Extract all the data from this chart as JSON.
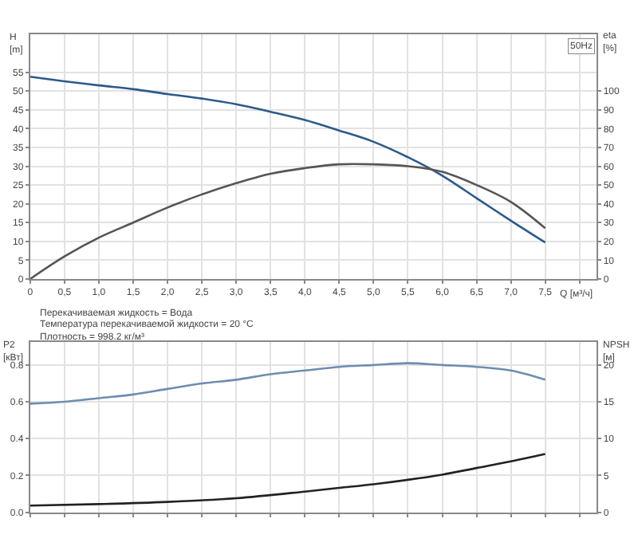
{
  "chart_data": [
    {
      "type": "line",
      "xlabel": "Q [м³/ч]",
      "ylabel": "H\n[m]",
      "y2label": "eta\n[%]",
      "xlim": [
        0,
        8.25
      ],
      "xticks": [
        0,
        {
          "value": 0.5,
          "label": "0,5"
        },
        {
          "value": 1,
          "label": "1,0"
        },
        {
          "value": 1.5,
          "label": "1,5"
        },
        {
          "value": 2,
          "label": "2,0"
        },
        {
          "value": 2.5,
          "label": "2,5"
        },
        {
          "value": 3,
          "label": "3,0"
        },
        {
          "value": 3.5,
          "label": "3,5"
        },
        {
          "value": 4,
          "label": "4,0"
        },
        {
          "value": 4.5,
          "label": "4,5"
        },
        {
          "value": 5,
          "label": "5,0"
        },
        {
          "value": 5.5,
          "label": "5,5"
        },
        {
          "value": 6,
          "label": "6,0"
        },
        {
          "value": 6.5,
          "label": "6,5"
        },
        {
          "value": 7,
          "label": "7,0"
        },
        {
          "value": 7.5,
          "label": "7,5"
        },
        {
          "value": 8,
          "label": null
        }
      ],
      "ylim": [
        0,
        65
      ],
      "yticks": [
        0,
        5,
        10,
        15,
        20,
        25,
        30,
        35,
        40,
        45,
        50,
        55
      ],
      "y2lim": [
        0,
        130
      ],
      "y2ticks": [
        0,
        10,
        20,
        30,
        40,
        50,
        60,
        70,
        80,
        90,
        100
      ],
      "grid": true,
      "series": [
        {
          "color": "#2b5a8c",
          "x": [
            0,
            0.5,
            1,
            1.5,
            2,
            2.5,
            3,
            3.5,
            4,
            4.5,
            5,
            5.5,
            6,
            6.5,
            7,
            7.5
          ],
          "values": [
            53.8,
            52.6,
            51.5,
            50.5,
            49.2,
            48,
            46.5,
            44.5,
            42.3,
            39.5,
            36.5,
            32.4,
            27.5,
            21.5,
            15.5,
            9.7
          ]
        },
        {
          "color": "#555555",
          "axis": "y2",
          "x": [
            0,
            0.5,
            1,
            1.5,
            2,
            2.5,
            3,
            3.5,
            4,
            4.5,
            5,
            5.5,
            6,
            6.5,
            7,
            7.5
          ],
          "values": [
            0,
            12,
            22,
            30,
            38,
            45,
            51,
            56,
            59,
            61,
            61,
            60,
            57,
            50,
            41,
            27
          ]
        }
      ],
      "annotations": [
        "50Hz",
        "Перекачиваемая жидкость = Вода",
        "Температура перекачиваемой жидкости = 20 °C",
        "Плотность = 998.2 кг/м³"
      ]
    },
    {
      "type": "line",
      "ylabel": "P2\n[кВт]",
      "y2label": "NPSH\n[м]",
      "tick_labels": "y",
      "xlim": [
        0,
        8.25
      ],
      "xticks": [
        {
          "value": 0,
          "label": null
        },
        {
          "value": 0.5,
          "label": null
        },
        {
          "value": 1,
          "label": null
        },
        {
          "value": 1.5,
          "label": null
        },
        {
          "value": 2,
          "label": null
        },
        {
          "value": 2.5,
          "label": null
        },
        {
          "value": 3,
          "label": null
        },
        {
          "value": 3.5,
          "label": null
        },
        {
          "value": 4,
          "label": null
        },
        {
          "value": 4.5,
          "label": null
        },
        {
          "value": 5,
          "label": null
        },
        {
          "value": 5.5,
          "label": null
        },
        {
          "value": 6,
          "label": null
        },
        {
          "value": 6.5,
          "label": null
        },
        {
          "value": 7,
          "label": null
        },
        {
          "value": 7.5,
          "label": null
        },
        {
          "value": 8,
          "label": null
        }
      ],
      "ylim": [
        0,
        0.925
      ],
      "yticks": [
        {
          "value": 0,
          "label": "0.0"
        },
        {
          "value": 0.2,
          "label": "0.2"
        },
        {
          "value": 0.4,
          "label": "0.4"
        },
        {
          "value": 0.6,
          "label": "0.6"
        },
        {
          "value": 0.8,
          "label": "0.8"
        }
      ],
      "y2lim": [
        0,
        23.1
      ],
      "y2ticks": [
        0,
        5,
        10,
        15,
        20
      ],
      "grid": true,
      "series": [
        {
          "color": "#6d8db0",
          "x": [
            0,
            0.5,
            1,
            1.5,
            2,
            2.5,
            3,
            3.5,
            4,
            4.5,
            5,
            5.5,
            6,
            6.5,
            7,
            7.5
          ],
          "values": [
            0.59,
            0.6,
            0.62,
            0.64,
            0.67,
            0.7,
            0.72,
            0.75,
            0.77,
            0.79,
            0.8,
            0.81,
            0.8,
            0.79,
            0.77,
            0.72
          ]
        },
        {
          "color": "#222222",
          "axis": "y2",
          "x": [
            0,
            1,
            2,
            3,
            4,
            4.5,
            5,
            5.5,
            6,
            6.5,
            7,
            7.5
          ],
          "values": [
            0.9,
            1.1,
            1.4,
            1.9,
            2.8,
            3.3,
            3.8,
            4.4,
            5.1,
            6.0,
            6.9,
            7.9
          ]
        }
      ]
    }
  ]
}
